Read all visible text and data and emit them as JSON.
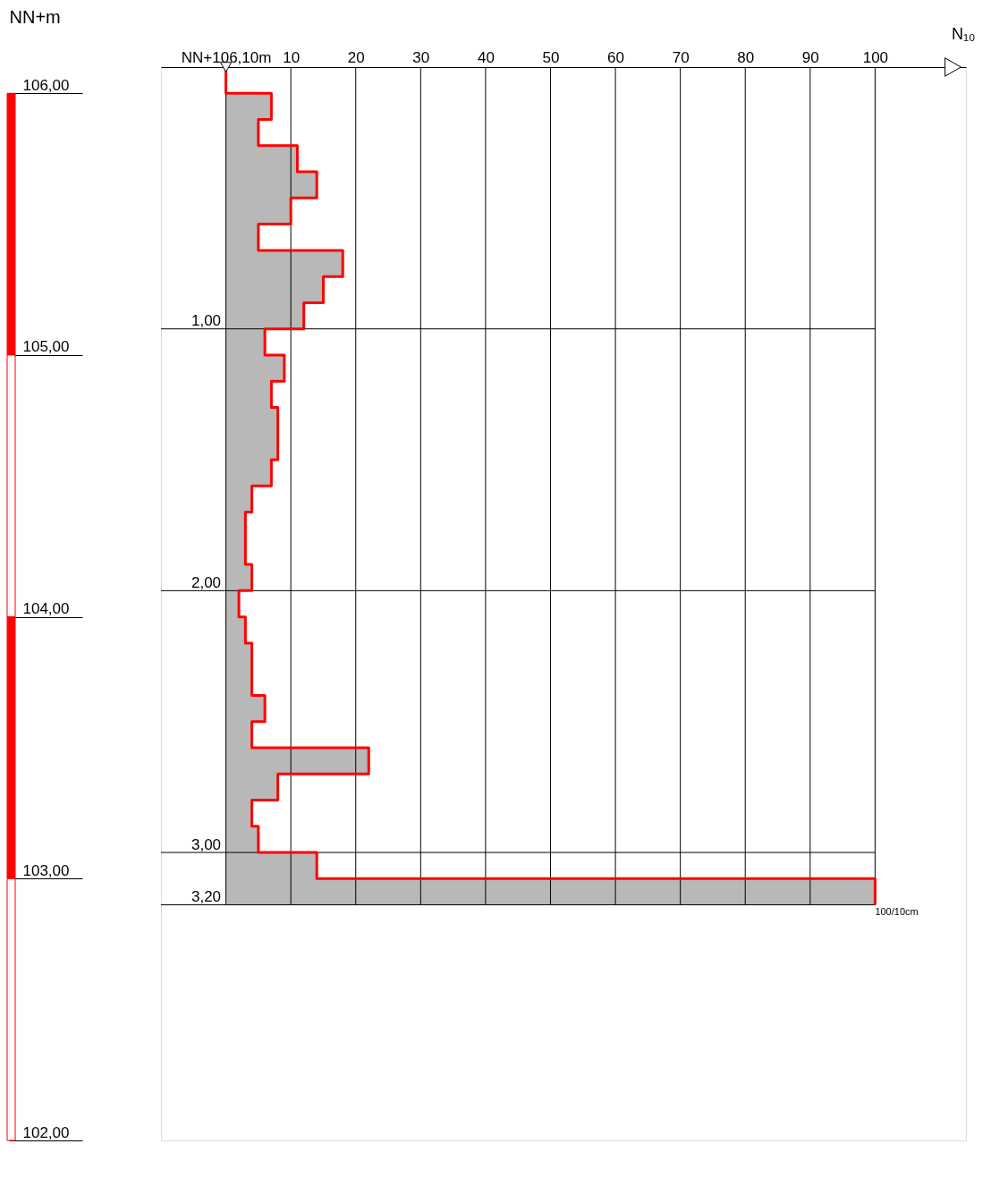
{
  "chart_data": {
    "type": "step",
    "orientation": "horizontal",
    "xlabel": "N₁₀",
    "y2label": "NN+m",
    "x": [
      0,
      0.1,
      0.2,
      0.3,
      0.4,
      0.5,
      0.6,
      0.7,
      0.8,
      0.9,
      1.0,
      1.1,
      1.2,
      1.3,
      1.4,
      1.5,
      1.6,
      1.7,
      1.8,
      1.9,
      2.0,
      2.1,
      2.2,
      2.3,
      2.4,
      2.5,
      2.6,
      2.7,
      2.8,
      2.9,
      3.0,
      3.1,
      3.2
    ],
    "series": [
      {
        "color": "#ff0000",
        "values": [
          0,
          7,
          5,
          11,
          14,
          10,
          5,
          18,
          15,
          12,
          6,
          9,
          7,
          8,
          8,
          7,
          4,
          3,
          3,
          4,
          2,
          3,
          4,
          4,
          6,
          4,
          22,
          8,
          4,
          5,
          14,
          100,
          100
        ]
      }
    ],
    "xlim": [
      -10,
      114
    ],
    "xticks": [
      {
        "value": 0,
        "label": "NN+106,10m"
      },
      10,
      20,
      30,
      40,
      50,
      60,
      70,
      80,
      90,
      100
    ],
    "ylim": [
      4.1,
      0
    ],
    "yticks": [
      {
        "value": 1,
        "label": "1,00"
      },
      {
        "value": 2,
        "label": "2,00"
      },
      {
        "value": 3,
        "label": "3,00"
      },
      {
        "value": 3.2,
        "label": "3,20"
      }
    ],
    "y2lim": [
      102.0,
      106.1
    ],
    "y2ticks": [
      {
        "value": 106,
        "label": "106,00"
      },
      {
        "value": 105,
        "label": "105,00"
      },
      {
        "value": 104,
        "label": "104,00"
      },
      {
        "value": 103,
        "label": "103,00"
      },
      {
        "value": 102,
        "label": "102,00"
      }
    ],
    "grid": true,
    "annotations": [
      "100/10cm"
    ]
  }
}
